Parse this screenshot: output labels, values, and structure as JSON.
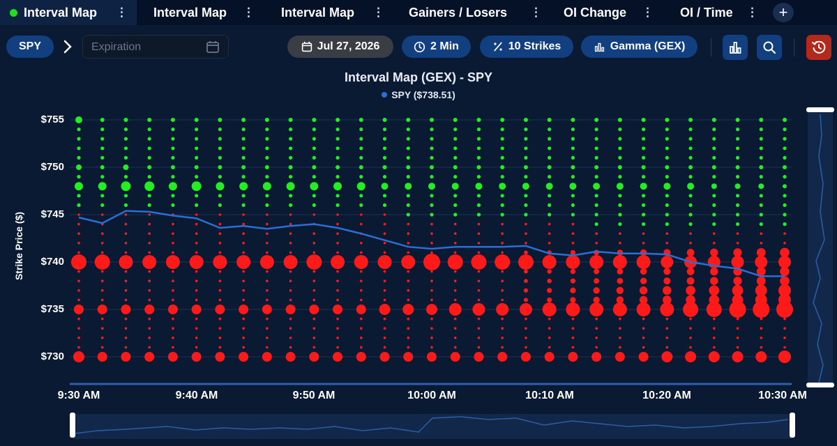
{
  "tabs": [
    {
      "label": "Interval Map",
      "active": true
    },
    {
      "label": "Interval Map",
      "active": false
    },
    {
      "label": "Interval Map",
      "active": false
    },
    {
      "label": "Gainers / Losers",
      "active": false
    },
    {
      "label": "OI Change",
      "active": false
    },
    {
      "label": "OI / Time",
      "active": false
    }
  ],
  "add_tab_label": "+",
  "toolbar": {
    "ticker": "SPY",
    "expiration_placeholder": "Expiration",
    "date": "Jul 27, 2026",
    "interval": "2 Min",
    "strikes": "10 Strikes",
    "metric": "Gamma (GEX)"
  },
  "icons": [
    "calendar-icon",
    "clock-icon",
    "percent-icon",
    "bar-chart-icon",
    "search-icon",
    "reset-icon",
    "chevron-right-icon",
    "kebab-icon",
    "plus-icon"
  ],
  "colors": {
    "positive": "#22ee22",
    "negative": "#ff1a1a",
    "price_line": "#2a6fd6",
    "accent": "#123f80"
  },
  "chart_data": {
    "type": "scatter",
    "title": "Interval Map (GEX) - SPY",
    "legend": [
      {
        "name": "SPY ($738.51)",
        "color": "#2a6fd6"
      }
    ],
    "xlabel": "",
    "ylabel": "Strike Price ($)",
    "ylim": [
      728,
      756
    ],
    "y_ticks": [
      "$755",
      "$750",
      "$745",
      "$740",
      "$735",
      "$730"
    ],
    "y_tick_values": [
      755,
      750,
      745,
      740,
      735,
      730
    ],
    "x_ticks": [
      "9:30 AM",
      "9:40 AM",
      "9:50 AM",
      "10:00 AM",
      "10:10 AM",
      "10:20 AM",
      "10:30 AM"
    ],
    "x_start": "9:30 AM",
    "interval_minutes": 2,
    "strikes": [
      755,
      754,
      753,
      752,
      751,
      750,
      749,
      748,
      747,
      746,
      745,
      744,
      743,
      742,
      741,
      740,
      739,
      738,
      737,
      736,
      735,
      734,
      733,
      732,
      731,
      730
    ],
    "bubble_note": "bubble size ~ |GEX|; green = positive gamma, red = negative gamma",
    "price_series": {
      "name": "SPY",
      "times": [
        "9:30",
        "9:32",
        "9:34",
        "9:36",
        "9:38",
        "9:40",
        "9:42",
        "9:44",
        "9:46",
        "9:48",
        "9:50",
        "9:52",
        "9:54",
        "9:56",
        "9:58",
        "10:00",
        "10:02",
        "10:04",
        "10:06",
        "10:08",
        "10:10",
        "10:12",
        "10:14",
        "10:16",
        "10:18",
        "10:20",
        "10:22",
        "10:24",
        "10:26",
        "10:28",
        "10:30"
      ],
      "values": [
        744.7,
        744.1,
        745.4,
        745.3,
        744.9,
        744.6,
        743.6,
        743.8,
        743.5,
        743.8,
        744.0,
        743.6,
        743.0,
        742.3,
        741.6,
        741.4,
        741.6,
        741.6,
        741.6,
        741.7,
        740.9,
        740.7,
        741.1,
        740.9,
        740.9,
        740.8,
        740.0,
        739.6,
        739.3,
        738.5,
        738.5
      ]
    },
    "gex_rows": {
      "755": {
        "sign": "pos",
        "size": [
          5,
          3,
          3,
          3,
          3,
          3,
          3,
          3,
          3,
          3,
          3,
          3,
          3,
          3,
          3,
          3,
          3,
          3,
          3,
          3,
          3,
          3,
          3,
          3,
          3,
          3,
          3,
          3,
          3,
          3,
          3
        ]
      },
      "750": {
        "sign": "pos",
        "size": [
          4,
          3,
          4,
          3,
          3,
          3,
          3,
          3,
          3,
          3,
          3,
          3,
          3,
          3,
          3,
          3,
          3,
          3,
          3,
          3,
          3,
          3,
          3,
          3,
          3,
          3,
          3,
          3,
          3,
          3,
          3
        ]
      },
      "748": {
        "sign": "pos",
        "size": [
          6,
          6,
          7,
          7,
          6,
          7,
          6,
          6,
          6,
          6,
          6,
          6,
          6,
          5,
          5,
          5,
          5,
          5,
          5,
          5,
          5,
          5,
          5,
          5,
          5,
          5,
          5,
          4,
          4,
          4,
          3
        ]
      },
      "740": {
        "sign": "neg",
        "size": [
          11,
          11,
          10,
          10,
          10,
          10,
          10,
          10,
          10,
          10,
          11,
          10,
          10,
          10,
          10,
          12,
          11,
          11,
          11,
          11,
          10,
          10,
          10,
          10,
          10,
          9,
          9,
          9,
          9,
          9,
          9
        ]
      },
      "735": {
        "sign": "neg",
        "size": [
          7,
          7,
          7,
          7,
          7,
          7,
          7,
          7,
          7,
          7,
          7,
          7,
          7,
          8,
          8,
          8,
          9,
          9,
          9,
          9,
          10,
          10,
          10,
          10,
          10,
          10,
          11,
          11,
          12,
          12,
          12
        ]
      },
      "730": {
        "sign": "neg",
        "size": [
          8,
          7,
          7,
          7,
          7,
          7,
          7,
          7,
          7,
          7,
          7,
          7,
          7,
          7,
          7,
          7,
          7,
          7,
          7,
          7,
          7,
          7,
          7,
          7,
          7,
          8,
          8,
          8,
          8,
          8,
          9
        ]
      }
    },
    "grid": true
  }
}
